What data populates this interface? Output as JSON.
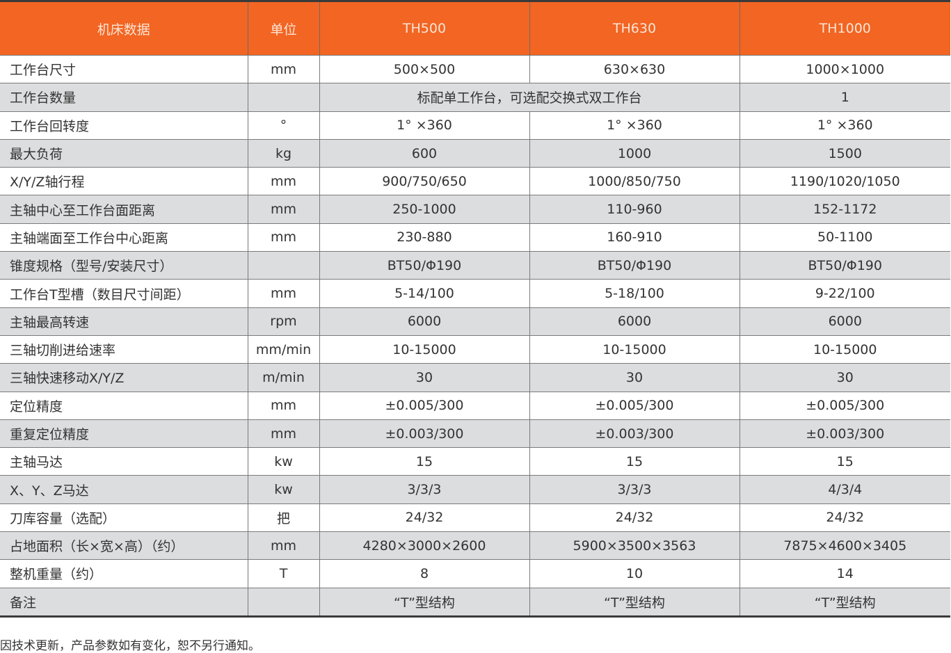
{
  "header": [
    "机床数据",
    "单位",
    "TH500",
    "TH630",
    "TH1000"
  ],
  "rows": [
    [
      "工作台尺寸",
      "mm",
      "500×500",
      "630×630",
      "1000×1000"
    ],
    [
      "工作台数量",
      "",
      "标配单工作台，可选配交换式双工作台",
      "",
      "1"
    ],
    [
      "工作台回转度",
      "°",
      "1°  ×360",
      "1°  ×360",
      "1°  ×360"
    ],
    [
      "最大负荷",
      "kg",
      "600",
      "1000",
      "1500"
    ],
    [
      "X/Y/Z轴行程",
      "mm",
      "900/750/650",
      "1000/850/750",
      "1190/1020/1050"
    ],
    [
      "主轴中心至工作台面距离",
      "mm",
      "250-1000",
      "110-960",
      "152-1172"
    ],
    [
      "主轴端面至工作台中心距离",
      "mm",
      "230-880",
      "160-910",
      "50-1100"
    ],
    [
      "锥度规格（型号/安装尺寸）",
      "",
      "BT50/Φ190",
      "BT50/Φ190",
      "BT50/Φ190"
    ],
    [
      "工作台T型槽（数目尺寸间距）",
      "mm",
      "5-14/100",
      "5-18/100",
      "9-22/100"
    ],
    [
      "主轴最高转速",
      "rpm",
      "6000",
      "6000",
      "6000"
    ],
    [
      "三轴切削进给速率",
      "mm/min",
      "10-15000",
      "10-15000",
      "10-15000"
    ],
    [
      "三轴快速移动X/Y/Z",
      "m/min",
      "30",
      "30",
      "30"
    ],
    [
      "定位精度",
      "mm",
      "±0.005/300",
      "±0.005/300",
      "±0.005/300"
    ],
    [
      "重复定位精度",
      "mm",
      "±0.003/300",
      "±0.003/300",
      "±0.003/300"
    ],
    [
      "主轴马达",
      "kw",
      "15",
      "15",
      "15"
    ],
    [
      "X、Y、Z马达",
      "kw",
      "3/3/3",
      "3/3/3",
      "4/3/4"
    ],
    [
      "刀库容量（选配）",
      "把",
      "24/32",
      "24/32",
      "24/32"
    ],
    [
      "占地面积（长×宽×高）（约）",
      "mm",
      "4280×3000×2600",
      "5900×3500×3563",
      "7875×4600×3405"
    ],
    [
      "整机重量（约）",
      "T",
      "8",
      "10",
      "14"
    ],
    [
      "备注",
      "",
      "“T”型结构",
      "“T”型结构",
      "“T”型结构"
    ]
  ],
  "footnote": "因技术更新，产品参数如有变化，恕不另行通知。",
  "colors": {
    "header_bg": "#f26522",
    "stripe": "#dcdddf"
  }
}
